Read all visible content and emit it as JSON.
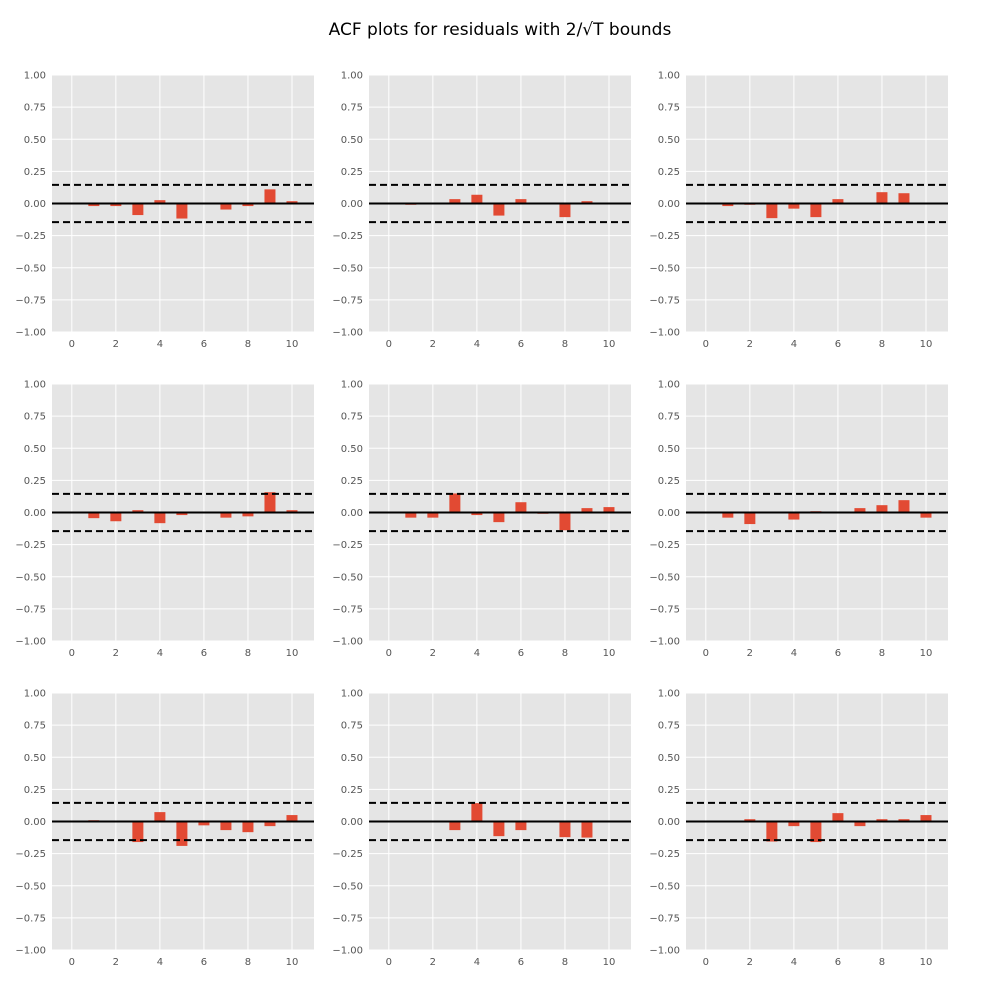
{
  "chart_data": {
    "title": "ACF plots for residuals with 2/√T bounds",
    "layout": "3x3 grid",
    "type": "bar",
    "background": "#E5E5E5",
    "bar_color": "#E24A33",
    "grid": true,
    "xlim": [
      -0.9,
      11
    ],
    "ylim": [
      -1,
      1
    ],
    "x_ticks": [
      0,
      2,
      4,
      6,
      8,
      10
    ],
    "x_tick_labels": [
      "0",
      "2",
      "4",
      "6",
      "8",
      "10"
    ],
    "y_ticks": [
      1,
      0.75,
      0.5,
      0.25,
      0,
      -0.25,
      -0.5,
      -0.75,
      -1
    ],
    "y_tick_labels": [
      "1.00",
      "0.75",
      "0.50",
      "0.25",
      "0.00",
      "−0.25",
      "−0.50",
      "−0.75",
      "−1.00"
    ],
    "bounds": [
      0.145,
      -0.145
    ],
    "lags": [
      1,
      2,
      3,
      4,
      5,
      6,
      7,
      8,
      9,
      10
    ],
    "panels": [
      {
        "values": [
          -0.02,
          -0.02,
          -0.09,
          0.026,
          -0.117,
          0,
          -0.047,
          -0.02,
          0.11,
          0.018
        ]
      },
      {
        "values": [
          -0.01,
          0,
          0.034,
          0.068,
          -0.094,
          0.034,
          0,
          -0.106,
          0.018,
          0
        ]
      },
      {
        "values": [
          -0.02,
          -0.01,
          -0.114,
          -0.04,
          -0.106,
          0.034,
          0,
          0.088,
          0.08,
          0
        ]
      },
      {
        "values": [
          -0.044,
          -0.068,
          0.018,
          -0.083,
          -0.02,
          0,
          -0.04,
          -0.03,
          0.158,
          0.018
        ]
      },
      {
        "values": [
          -0.04,
          -0.04,
          0.148,
          -0.02,
          -0.075,
          0.08,
          -0.01,
          -0.138,
          0.034,
          0.042
        ]
      },
      {
        "values": [
          -0.04,
          -0.09,
          0,
          -0.055,
          0.01,
          0,
          0.034,
          0.057,
          0.096,
          -0.04
        ]
      },
      {
        "values": [
          0.01,
          0,
          -0.16,
          0.073,
          -0.19,
          -0.03,
          -0.067,
          -0.083,
          -0.036,
          0.05
        ]
      },
      {
        "values": [
          0,
          0,
          -0.067,
          0.143,
          -0.114,
          -0.067,
          0,
          -0.122,
          -0.125,
          0
        ]
      },
      {
        "values": [
          0,
          0.018,
          -0.156,
          -0.036,
          -0.16,
          0.065,
          -0.036,
          0.018,
          0.018,
          0.05
        ]
      }
    ]
  }
}
